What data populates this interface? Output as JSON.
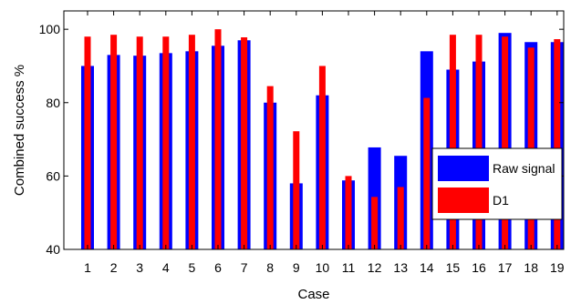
{
  "chart_data": {
    "type": "bar",
    "xlabel": "Case",
    "ylabel": "Combined success  %",
    "categories": [
      "1",
      "2",
      "3",
      "4",
      "5",
      "6",
      "7",
      "8",
      "9",
      "10",
      "11",
      "12",
      "13",
      "14",
      "15",
      "16",
      "17",
      "18",
      "19"
    ],
    "ylim": [
      40,
      105
    ],
    "yticks": [
      "40",
      "60",
      "80",
      "100"
    ],
    "grid": false,
    "legend_position": "right",
    "series": [
      {
        "name": "Raw signal",
        "color": "#0000ff",
        "values": [
          90,
          93,
          92.8,
          93.5,
          94,
          95.5,
          97,
          80,
          58,
          82,
          58.8,
          67.8,
          65.5,
          94,
          89,
          91.2,
          99,
          96.5,
          96.5
        ]
      },
      {
        "name": "D1",
        "color": "#ff0000",
        "values": [
          98,
          98.5,
          98,
          98,
          98.5,
          100,
          97.8,
          84.5,
          72.2,
          90,
          60,
          54.3,
          57,
          81.3,
          98.5,
          98.5,
          98,
          95,
          97.3
        ]
      }
    ]
  }
}
